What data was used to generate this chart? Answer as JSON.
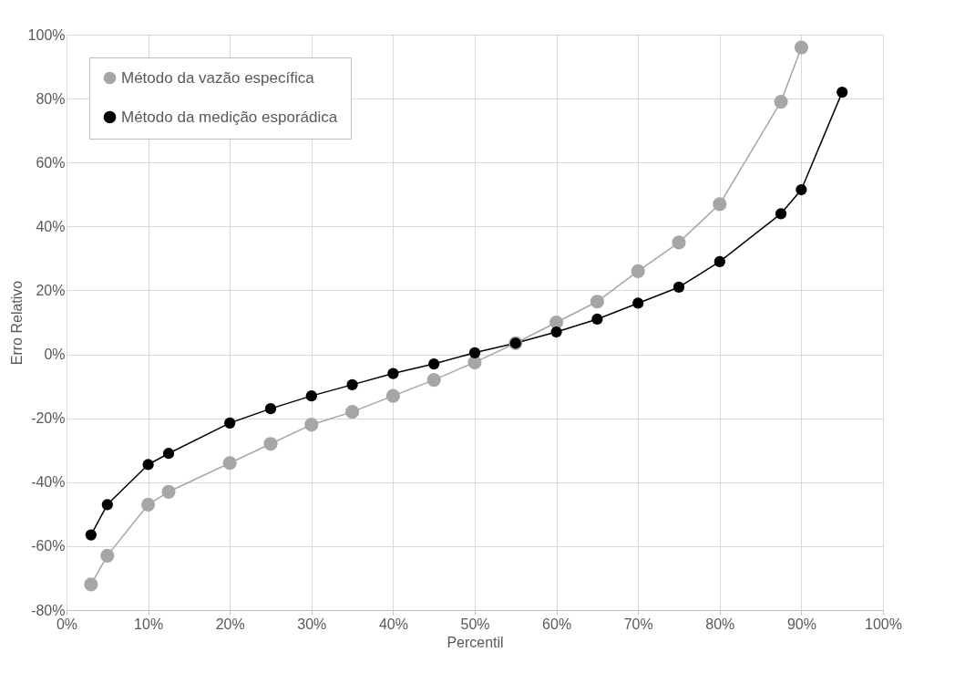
{
  "chart_data": {
    "type": "line",
    "xlabel": "Percentil",
    "ylabel": "Erro Relativo",
    "x": [
      3,
      5,
      10,
      12.5,
      20,
      25,
      30,
      35,
      40,
      45,
      50,
      55,
      60,
      65,
      70,
      75,
      80,
      87.5,
      90,
      95
    ],
    "series": [
      {
        "name": "Método da vazão específica",
        "color": "#a6a6a6",
        "values": [
          -72,
          -63,
          -47,
          -43,
          -34,
          -28,
          -22,
          -18,
          -13,
          -8,
          -2.5,
          3.5,
          10,
          16.5,
          26,
          35,
          47,
          79,
          96,
          null
        ]
      },
      {
        "name": "Método da medição esporádica",
        "color": "#000000",
        "values": [
          -56.5,
          -47,
          -34.5,
          -31,
          -21.5,
          -17,
          -13,
          -9.5,
          -6,
          -3,
          0.5,
          3.5,
          7,
          11,
          16,
          21,
          29,
          44,
          51.5,
          82
        ]
      }
    ],
    "xlim": [
      0,
      100
    ],
    "xticks": [
      {
        "value": 0,
        "label": "0%"
      },
      {
        "value": 10,
        "label": "10%"
      },
      {
        "value": 20,
        "label": "20%"
      },
      {
        "value": 30,
        "label": "30%"
      },
      {
        "value": 40,
        "label": "40%"
      },
      {
        "value": 50,
        "label": "50%"
      },
      {
        "value": 60,
        "label": "60%"
      },
      {
        "value": 70,
        "label": "70%"
      },
      {
        "value": 80,
        "label": "80%"
      },
      {
        "value": 90,
        "label": "90%"
      },
      {
        "value": 100,
        "label": "100%"
      }
    ],
    "ylim": [
      -80,
      100
    ],
    "yticks": [
      {
        "value": -80,
        "label": "-80%"
      },
      {
        "value": -60,
        "label": "-60%"
      },
      {
        "value": -40,
        "label": "-40%"
      },
      {
        "value": -20,
        "label": "-20%"
      },
      {
        "value": 0,
        "label": "0%"
      },
      {
        "value": 20,
        "label": "20%"
      },
      {
        "value": 40,
        "label": "40%"
      },
      {
        "value": 60,
        "label": "60%"
      },
      {
        "value": 80,
        "label": "80%"
      },
      {
        "value": 100,
        "label": "100%"
      }
    ],
    "grid": true,
    "legend": "top left",
    "marker": "circle",
    "line_style": "solid"
  }
}
